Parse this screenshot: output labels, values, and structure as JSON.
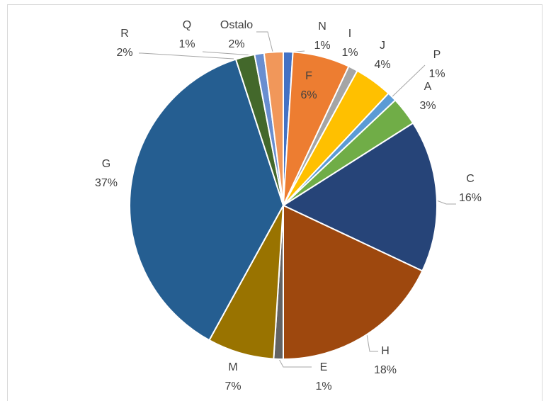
{
  "chart_data": {
    "type": "pie",
    "categories": [
      "N",
      "F",
      "I",
      "J",
      "P",
      "A",
      "C",
      "H",
      "E",
      "M",
      "G",
      "R",
      "Q",
      "Ostalo"
    ],
    "values": [
      1,
      6,
      1,
      4,
      1,
      3,
      16,
      18,
      1,
      7,
      37,
      2,
      1,
      2
    ],
    "value_labels": [
      "1%",
      "6%",
      "1%",
      "4%",
      "1%",
      "3%",
      "16%",
      "18%",
      "1%",
      "7%",
      "37%",
      "2%",
      "1%",
      "2%"
    ],
    "colors": [
      "#4472c4",
      "#ed7d31",
      "#a5a5a5",
      "#ffc000",
      "#5b9bd5",
      "#70ad47",
      "#264478",
      "#9e480e",
      "#636363",
      "#997300",
      "#255e91",
      "#43682b",
      "#698ed0",
      "#f1975a"
    ]
  }
}
